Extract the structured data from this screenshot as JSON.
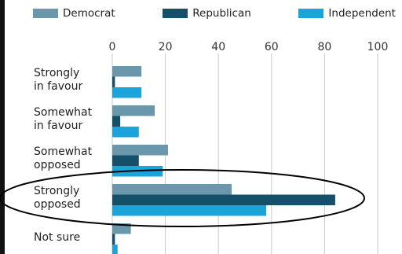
{
  "chart_data": {
    "type": "bar",
    "orientation": "horizontal",
    "categories": [
      "Strongly\nin favour",
      "Somewhat\nin favour",
      "Somewhat\nopposed",
      "Strongly\nopposed",
      "Not sure"
    ],
    "series": [
      {
        "name": "Democrat",
        "color": "#6b97ad",
        "values": [
          11,
          16,
          21,
          45,
          7
        ]
      },
      {
        "name": "Republican",
        "color": "#15506b",
        "values": [
          1,
          3,
          10,
          84,
          1
        ]
      },
      {
        "name": "Independent",
        "color": "#1aa4da",
        "values": [
          11,
          10,
          19,
          58,
          2
        ]
      }
    ],
    "xticks": [
      0,
      20,
      40,
      60,
      80,
      100
    ],
    "xlim": [
      0,
      100
    ],
    "grid": true,
    "legend": "top",
    "annotation": "ellipse around Strongly opposed"
  }
}
